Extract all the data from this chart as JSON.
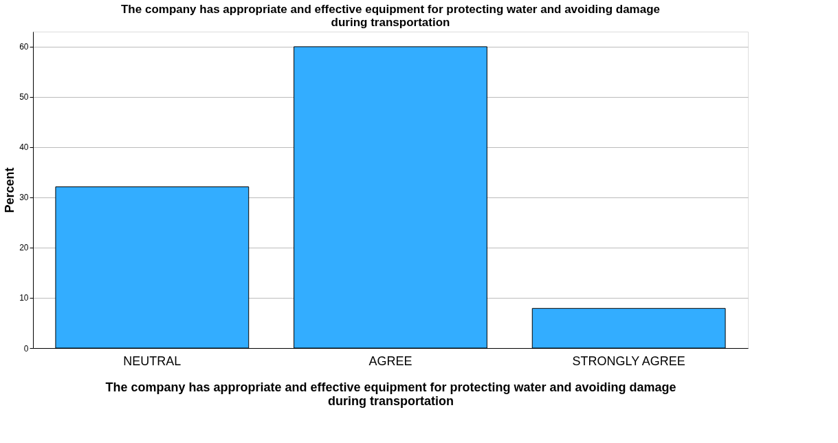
{
  "chart_data": {
    "type": "bar",
    "title": "The company has appropriate and effective equipment for protecting water and avoiding damage during transportation",
    "xlabel": "The company has appropriate and effective equipment for protecting water and avoiding damage during transportation",
    "ylabel": "Percent",
    "categories": [
      "NEUTRAL",
      "AGREE",
      "STRONGLY AGREE"
    ],
    "values": [
      32.1,
      60.0,
      7.9
    ],
    "color": "#33adff",
    "ylim": [
      0,
      63
    ],
    "yticks": [
      0,
      10,
      20,
      30,
      40,
      50,
      60
    ],
    "grid": "y"
  }
}
